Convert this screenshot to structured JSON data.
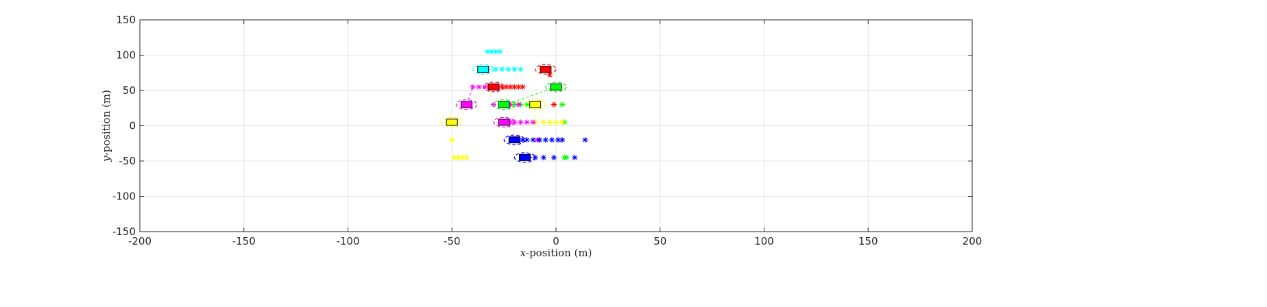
{
  "chart_data": {
    "type": "scatter",
    "title": "",
    "xlabel": {
      "var": "x",
      "rest": "-position (m)"
    },
    "ylabel": {
      "var": "y",
      "rest": "-position (m)"
    },
    "xlim": [
      -200,
      200
    ],
    "ylim": [
      -150,
      150
    ],
    "xticks": [
      -200,
      -150,
      -100,
      -50,
      0,
      50,
      100,
      150,
      200
    ],
    "yticks": [
      -150,
      -100,
      -50,
      0,
      50,
      100,
      150
    ],
    "xtick_labels": [
      "-200",
      "-150",
      "-100",
      "-50",
      "0",
      "50",
      "100",
      "150",
      "200"
    ],
    "ytick_labels": [
      "-150",
      "-100",
      "-50",
      "0",
      "50",
      "100",
      "150"
    ],
    "grid": true,
    "vehicles": [
      {
        "color": "#00ffff",
        "pos": [
          -35,
          80
        ],
        "predicted": [
          [
            -29,
            80
          ],
          [
            -26,
            80
          ],
          [
            -23,
            80
          ],
          [
            -20,
            80
          ],
          [
            -17,
            80
          ],
          [
            -35,
            80
          ],
          [
            -33,
            105
          ],
          [
            -31,
            105
          ],
          [
            -29,
            105
          ],
          [
            -27,
            105
          ]
        ]
      },
      {
        "color": "#ff0000",
        "pos": [
          -5,
          80
        ],
        "predicted": [
          [
            -3,
            72
          ]
        ]
      },
      {
        "color": "#ff0000",
        "pos": [
          -30,
          55
        ],
        "predicted": [
          [
            -26,
            55
          ],
          [
            -24,
            55
          ],
          [
            -22,
            55
          ],
          [
            -20,
            55
          ],
          [
            -18,
            55
          ],
          [
            -16,
            55
          ],
          [
            -1,
            30
          ]
        ]
      },
      {
        "color": "#00ff00",
        "pos": [
          0,
          55
        ],
        "predicted": [
          [
            -24,
            30
          ],
          [
            -20,
            30
          ],
          [
            -17,
            30
          ],
          [
            -14,
            30
          ],
          [
            3,
            30
          ],
          [
            4,
            5
          ],
          [
            4,
            -45
          ],
          [
            5,
            -45
          ]
        ]
      },
      {
        "color": "#ff00ff",
        "pos": [
          -43,
          30
        ],
        "predicted": [
          [
            -40,
            55
          ],
          [
            -37,
            55
          ],
          [
            -34,
            55
          ],
          [
            -30,
            30
          ],
          [
            -26,
            30
          ],
          [
            -22,
            30
          ],
          [
            -18,
            30
          ]
        ]
      },
      {
        "color": "#00ff00",
        "pos": [
          -25,
          30
        ],
        "predicted": []
      },
      {
        "color": "#ffff00",
        "pos": [
          -10,
          30
        ],
        "predicted": [
          [
            -10,
            5
          ],
          [
            -6,
            5
          ],
          [
            -3,
            5
          ],
          [
            0,
            5
          ],
          [
            3,
            5
          ],
          [
            -50,
            -20
          ],
          [
            -49,
            -45
          ],
          [
            -47,
            -45
          ],
          [
            -45,
            -45
          ],
          [
            -43,
            -45
          ]
        ]
      },
      {
        "color": "#ffff00",
        "pos": [
          -50,
          5
        ],
        "predicted": []
      },
      {
        "color": "#ff00ff",
        "pos": [
          -25,
          5
        ],
        "predicted": [
          [
            -22,
            5
          ],
          [
            -20,
            5
          ],
          [
            -17,
            5
          ],
          [
            -14,
            5
          ],
          [
            -11,
            5
          ],
          [
            -9,
            -20
          ],
          [
            -8,
            -20
          ]
        ]
      },
      {
        "color": "#0000ff",
        "pos": [
          -20,
          -20
        ],
        "predicted": [
          [
            -16,
            -20
          ],
          [
            -14,
            -20
          ],
          [
            -11,
            -20
          ],
          [
            -8,
            -20
          ],
          [
            -5,
            -20
          ],
          [
            -2,
            -20
          ],
          [
            1,
            -20
          ],
          [
            3,
            -20
          ],
          [
            14,
            -20
          ]
        ]
      },
      {
        "color": "#0000ff",
        "pos": [
          -15,
          -45
        ],
        "predicted": [
          [
            -10,
            -45
          ],
          [
            -6,
            -45
          ],
          [
            -1,
            -45
          ],
          [
            9,
            -45
          ]
        ]
      }
    ]
  }
}
